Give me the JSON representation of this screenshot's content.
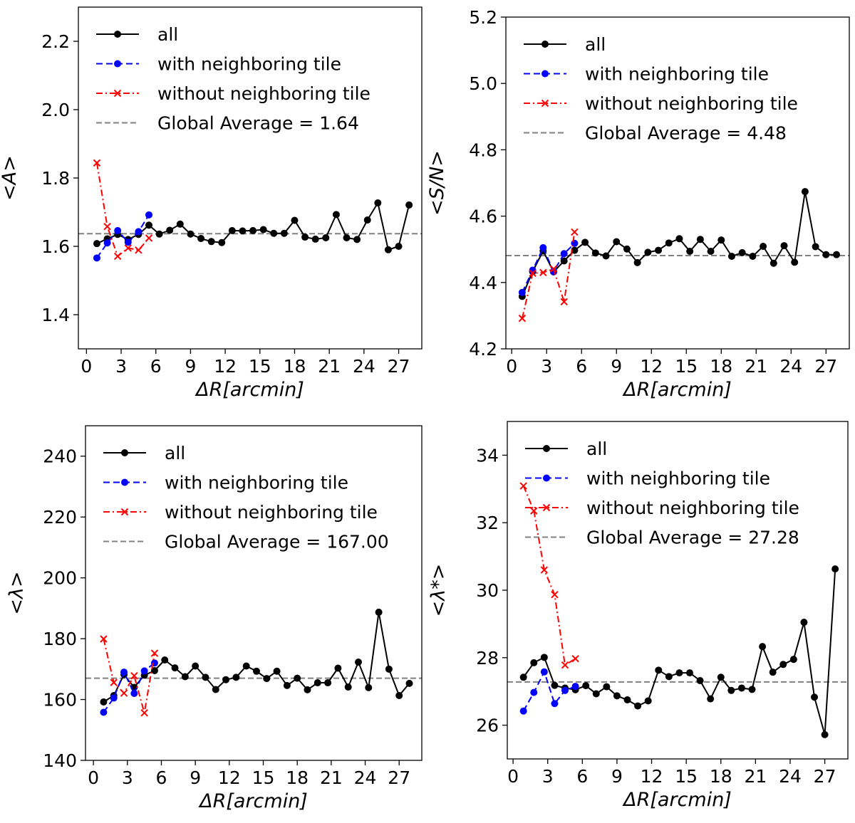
{
  "chart_data": [
    {
      "type": "line",
      "panel": "top-left",
      "ylabel": "<A>",
      "xlabel": "ΔR[arcmin]",
      "xlim": [
        -0.7,
        29.0
      ],
      "ylim": [
        1.3,
        2.3
      ],
      "xticks": [
        0,
        3,
        6,
        9,
        12,
        15,
        18,
        21,
        24,
        27
      ],
      "yticks": [
        1.4,
        1.6,
        1.8,
        2.0,
        2.2
      ],
      "yfmt": 1,
      "legend_position": "upper-left",
      "global_average": 1.637,
      "series": [
        {
          "name": "all",
          "style": "all",
          "x": [
            0.9,
            1.8,
            2.7,
            3.6,
            4.5,
            5.4,
            6.3,
            7.2,
            8.1,
            9.0,
            9.9,
            10.8,
            11.7,
            12.6,
            13.5,
            14.4,
            15.3,
            16.2,
            17.1,
            18.0,
            18.9,
            19.8,
            20.7,
            21.6,
            22.5,
            23.4,
            24.3,
            25.2,
            26.1,
            27.0,
            27.9
          ],
          "y": [
            1.608,
            1.622,
            1.635,
            1.62,
            1.635,
            1.662,
            1.636,
            1.647,
            1.665,
            1.636,
            1.623,
            1.614,
            1.611,
            1.646,
            1.645,
            1.646,
            1.649,
            1.638,
            1.638,
            1.676,
            1.627,
            1.621,
            1.625,
            1.693,
            1.625,
            1.62,
            1.677,
            1.727,
            1.59,
            1.6,
            1.721
          ]
        },
        {
          "name": "with neighboring tile",
          "style": "with",
          "x": [
            0.9,
            1.8,
            2.7,
            3.6,
            4.5,
            5.4
          ],
          "y": [
            1.566,
            1.61,
            1.646,
            1.612,
            1.643,
            1.692
          ]
        },
        {
          "name": "without neighboring tile",
          "style": "without",
          "x": [
            0.9,
            1.8,
            2.7,
            3.6,
            4.5,
            5.4
          ],
          "y": [
            1.844,
            1.658,
            1.571,
            1.595,
            1.589,
            1.624
          ]
        }
      ],
      "legend": {
        "all": "all",
        "with": "with neighboring tile",
        "without": "without neighboring tile",
        "global": "Global Average = 1.64"
      }
    },
    {
      "type": "line",
      "panel": "top-right",
      "ylabel": "<S/N>",
      "xlabel": "ΔR[arcmin]",
      "xlim": [
        -0.5,
        29.0
      ],
      "ylim": [
        4.2,
        5.2
      ],
      "xticks": [
        0,
        3,
        6,
        9,
        12,
        15,
        18,
        21,
        24,
        27
      ],
      "yticks": [
        4.2,
        4.4,
        4.6,
        4.8,
        5.0,
        5.2
      ],
      "yfmt": 1,
      "legend_position": "upper-left",
      "global_average": 4.481,
      "series": [
        {
          "name": "all",
          "style": "all",
          "x": [
            0.9,
            1.8,
            2.7,
            3.6,
            4.5,
            5.4,
            6.3,
            7.2,
            8.1,
            9.0,
            9.9,
            10.8,
            11.7,
            12.6,
            13.5,
            14.4,
            15.3,
            16.2,
            17.1,
            18.0,
            18.9,
            19.8,
            20.7,
            21.6,
            22.5,
            23.4,
            24.3,
            25.2,
            26.1,
            27.0,
            27.9
          ],
          "y": [
            4.358,
            4.433,
            4.495,
            4.432,
            4.465,
            4.497,
            4.521,
            4.489,
            4.48,
            4.523,
            4.501,
            4.46,
            4.491,
            4.497,
            4.519,
            4.532,
            4.494,
            4.53,
            4.494,
            4.528,
            4.479,
            4.49,
            4.479,
            4.509,
            4.458,
            4.511,
            4.461,
            4.674,
            4.508,
            4.484,
            4.484
          ]
        },
        {
          "name": "with neighboring tile",
          "style": "with",
          "x": [
            0.9,
            1.8,
            2.7,
            3.6,
            4.5,
            5.4
          ],
          "y": [
            4.37,
            4.437,
            4.505,
            4.433,
            4.487,
            4.518
          ]
        },
        {
          "name": "without neighboring tile",
          "style": "without",
          "x": [
            0.9,
            1.8,
            2.7,
            3.6,
            4.5,
            5.4
          ],
          "y": [
            4.292,
            4.428,
            4.43,
            4.441,
            4.342,
            4.552
          ]
        }
      ],
      "legend": {
        "all": "all",
        "with": "with neighboring tile",
        "without": "without neighboring tile",
        "global": "Global Average = 4.48"
      }
    },
    {
      "type": "line",
      "panel": "bottom-left",
      "ylabel": "<λ>",
      "xlabel": "ΔR[arcmin]",
      "xlim": [
        -0.7,
        29.0
      ],
      "ylim": [
        140,
        250
      ],
      "xticks": [
        0,
        3,
        6,
        9,
        12,
        15,
        18,
        21,
        24,
        27
      ],
      "yticks": [
        140,
        160,
        180,
        200,
        220,
        240
      ],
      "yfmt": 0,
      "legend_position": "upper-left",
      "global_average": 167.0,
      "series": [
        {
          "name": "all",
          "style": "all",
          "x": [
            0.9,
            1.8,
            2.7,
            3.6,
            4.5,
            5.4,
            6.3,
            7.2,
            8.1,
            9.0,
            9.9,
            10.8,
            11.7,
            12.6,
            13.5,
            14.4,
            15.3,
            16.2,
            17.1,
            18.0,
            18.9,
            19.8,
            20.7,
            21.6,
            22.5,
            23.4,
            24.3,
            25.2,
            26.1,
            27.0,
            27.9
          ],
          "y": [
            159.2,
            161.3,
            168.2,
            164.0,
            168.0,
            169.5,
            173.0,
            170.4,
            167.5,
            171.0,
            167.3,
            163.3,
            166.5,
            167.3,
            171.0,
            169.3,
            166.9,
            169.3,
            164.6,
            167.0,
            163.2,
            165.5,
            165.5,
            170.3,
            164.1,
            172.3,
            163.9,
            188.7,
            170.0,
            161.3,
            165.3
          ]
        },
        {
          "name": "with neighboring tile",
          "style": "with",
          "x": [
            0.9,
            1.8,
            2.7,
            3.6,
            4.5,
            5.4
          ],
          "y": [
            155.8,
            160.5,
            169.0,
            162.0,
            169.4,
            172.0
          ]
        },
        {
          "name": "without neighboring tile",
          "style": "without",
          "x": [
            0.9,
            1.8,
            2.7,
            3.6,
            4.5,
            5.4
          ],
          "y": [
            179.9,
            165.6,
            162.1,
            167.8,
            155.6,
            175.2
          ]
        }
      ],
      "legend": {
        "all": "all",
        "with": "with neighboring tile",
        "without": "without neighboring tile",
        "global": "Global Average = 167.00"
      }
    },
    {
      "type": "line",
      "panel": "bottom-right",
      "ylabel": "<λ*>",
      "xlabel": "ΔR[arcmin]",
      "xlim": [
        -0.5,
        29.0
      ],
      "ylim": [
        25.0,
        35.0
      ],
      "xticks": [
        0,
        3,
        6,
        9,
        12,
        15,
        18,
        21,
        24,
        27
      ],
      "yticks": [
        26,
        28,
        30,
        32,
        34
      ],
      "yfmt": 0,
      "legend_position": "upper-left",
      "global_average": 27.28,
      "series": [
        {
          "name": "all",
          "style": "all",
          "x": [
            0.9,
            1.8,
            2.7,
            3.6,
            4.5,
            5.4,
            6.3,
            7.2,
            8.1,
            9.0,
            9.9,
            10.8,
            11.7,
            12.6,
            13.5,
            14.4,
            15.3,
            16.2,
            17.1,
            18.0,
            18.9,
            19.8,
            20.7,
            21.6,
            22.5,
            23.4,
            24.3,
            25.2,
            26.1,
            27.0,
            27.9
          ],
          "y": [
            27.42,
            27.85,
            28.01,
            27.18,
            27.1,
            27.05,
            27.17,
            26.93,
            27.14,
            26.87,
            26.75,
            26.57,
            26.72,
            27.63,
            27.44,
            27.55,
            27.55,
            27.32,
            26.78,
            27.42,
            27.03,
            27.1,
            27.06,
            28.33,
            27.57,
            27.8,
            27.95,
            29.05,
            26.83,
            25.72,
            30.63
          ]
        },
        {
          "name": "with neighboring tile",
          "style": "with",
          "x": [
            0.9,
            1.8,
            2.7,
            3.6,
            4.5,
            5.4
          ],
          "y": [
            26.42,
            26.97,
            27.58,
            26.64,
            27.03,
            27.15
          ]
        },
        {
          "name": "without neighboring tile",
          "style": "without",
          "x": [
            0.9,
            1.8,
            2.7,
            3.6,
            4.5,
            5.4
          ],
          "y": [
            33.09,
            32.35,
            30.6,
            29.87,
            27.78,
            27.97
          ]
        }
      ],
      "legend": {
        "all": "all",
        "with": "with neighboring tile",
        "without": "without neighboring tile",
        "global": "Global Average = 27.28"
      }
    }
  ]
}
